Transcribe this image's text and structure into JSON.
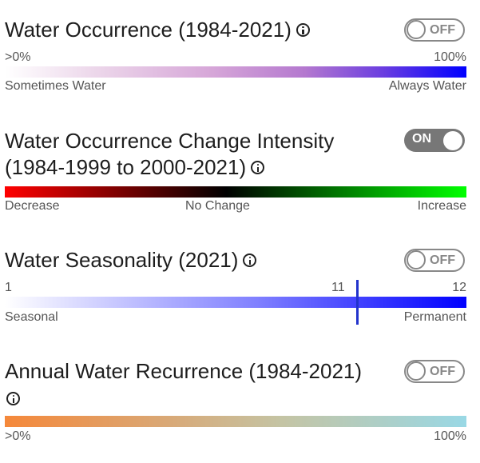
{
  "colors": {
    "toggle_off": "#888888",
    "toggle_on_bg": "#777777",
    "occurrence_gradient": [
      "#ffffff",
      "#d8a8d6",
      "#b070c8",
      "#0000ff"
    ],
    "change_gradient": [
      "#ff0000",
      "#000000",
      "#00ff00"
    ],
    "seasonality_gradient": [
      "#ffffff",
      "#0000ff"
    ],
    "seasonality_marker": "#2233cc",
    "recurrence_gradient": [
      "#ff7f00",
      "#99d8e5"
    ]
  },
  "occurrence": {
    "title": "Water Occurrence (1984-2021)",
    "info_icon": "info-icon",
    "toggle": "OFF",
    "min_label": ">0%",
    "max_label": "100%",
    "left_caption": "Sometimes Water",
    "right_caption": "Always Water"
  },
  "change": {
    "title_line1": "Water Occurrence Change Intensity",
    "title_line2": "(1984-1999 to 2000-2021)",
    "info_icon": "info-icon",
    "toggle": "ON",
    "left_caption": "Decrease",
    "middle_caption": "No Change",
    "right_caption": "Increase"
  },
  "seasonality": {
    "title": "Water Seasonality (2021)",
    "info_icon": "info-icon",
    "toggle": "OFF",
    "min_label": "1",
    "marker_label": "11",
    "max_label": "12",
    "left_caption": "Seasonal",
    "right_caption": "Permanent"
  },
  "recurrence": {
    "title": "Annual Water Recurrence (1984-2021)",
    "info_icon": "info-icon",
    "toggle": "OFF",
    "min_label": ">0%",
    "max_label": "100%"
  }
}
